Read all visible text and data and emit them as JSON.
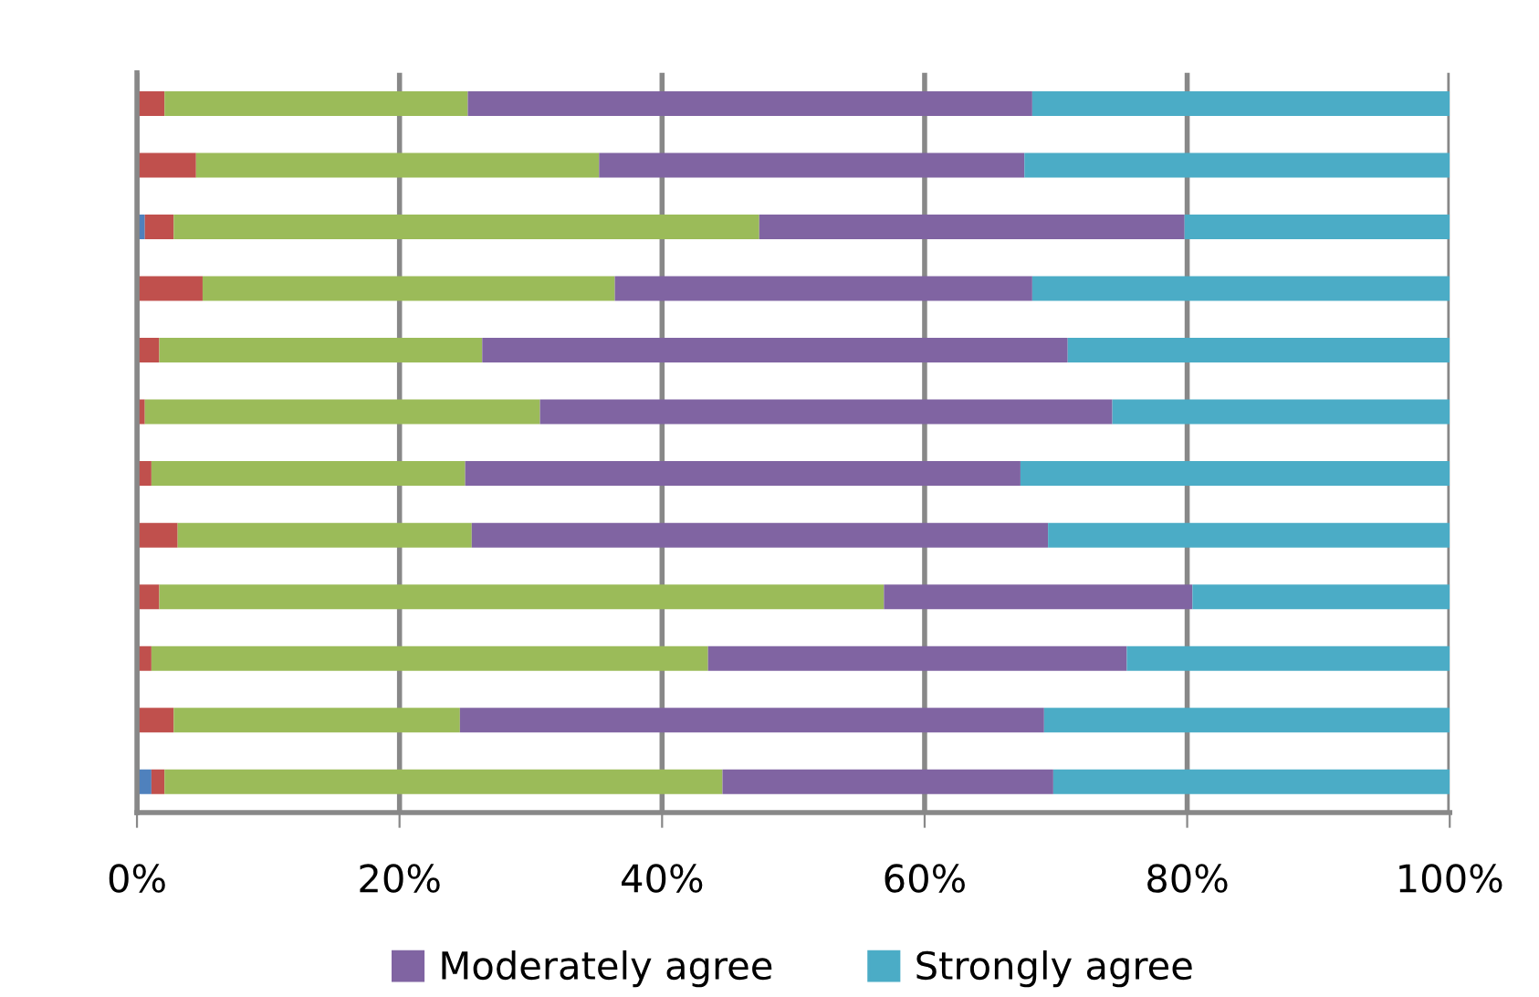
{
  "chart_data": {
    "type": "bar",
    "orientation": "horizontal",
    "stacked": true,
    "categories": [
      null,
      null,
      null,
      null,
      null,
      null,
      null,
      null,
      null,
      null,
      null,
      null
    ],
    "series": [
      {
        "color": "#4f81bd",
        "values": [
          0,
          0,
          0.6,
          0,
          0,
          0,
          0,
          0,
          0,
          0,
          0,
          1.1
        ]
      },
      {
        "color": "#c0504d",
        "values": [
          2.1,
          4.5,
          2.2,
          5.0,
          1.7,
          0.6,
          1.1,
          3.1,
          1.7,
          1.1,
          2.8,
          1.0
        ]
      },
      {
        "color": "#9bbb59",
        "values": [
          23.1,
          30.7,
          44.6,
          31.4,
          24.6,
          30.1,
          23.9,
          22.4,
          55.2,
          42.4,
          21.8,
          42.5
        ]
      },
      {
        "name": "Moderately agree",
        "color": "#8064a2",
        "values": [
          43.0,
          32.4,
          32.4,
          31.8,
          44.6,
          43.6,
          42.3,
          43.9,
          23.5,
          31.9,
          44.5,
          25.2
        ]
      },
      {
        "name": "Strongly agree",
        "color": "#4bacc6",
        "values": [
          31.8,
          32.4,
          20.2,
          31.8,
          29.1,
          25.7,
          32.7,
          30.6,
          19.6,
          24.6,
          30.9,
          30.2
        ]
      }
    ],
    "xlim": [
      0,
      100
    ],
    "xticks": [
      {
        "value": 0,
        "label": "0%"
      },
      {
        "value": 20,
        "label": "20%"
      },
      {
        "value": 40,
        "label": "40%"
      },
      {
        "value": 60,
        "label": "60%"
      },
      {
        "value": 80,
        "label": "80%"
      },
      {
        "value": 100,
        "label": "100%"
      }
    ],
    "grid": "x",
    "legend": "bottom"
  }
}
